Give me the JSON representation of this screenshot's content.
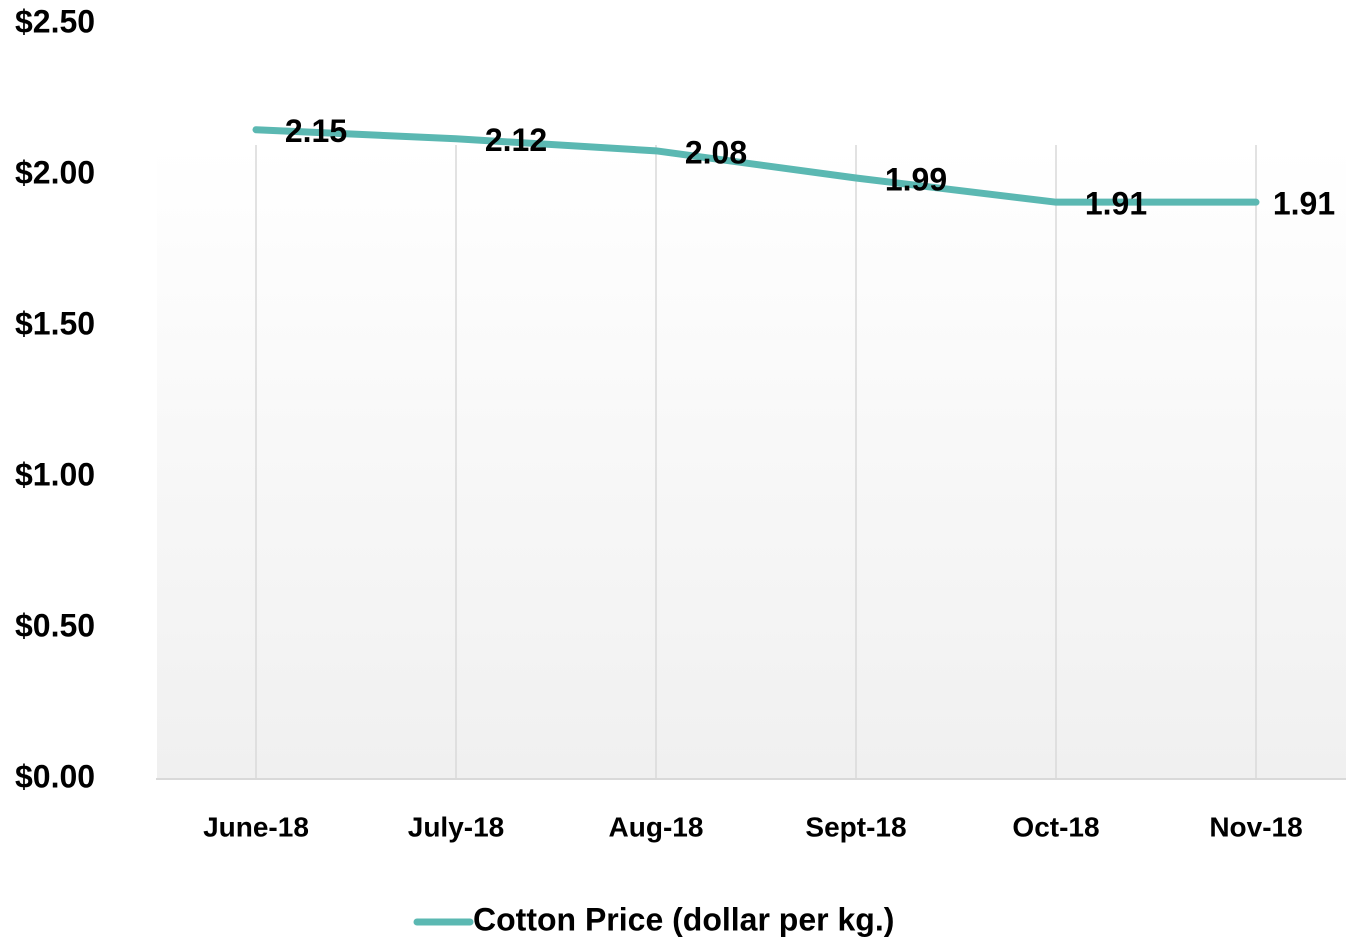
{
  "chart_data": {
    "type": "line",
    "categories": [
      "June-18",
      "July-18",
      "Aug-18",
      "Sept-18",
      "Oct-18",
      "Nov-18"
    ],
    "series": [
      {
        "name": "Cotton Price (dollar per kg.)",
        "color": "#5bb8b2",
        "values": [
          2.15,
          2.12,
          2.08,
          1.99,
          1.91,
          1.91
        ]
      }
    ],
    "ylim": [
      0,
      2.5
    ],
    "yticks": [
      {
        "value": 0,
        "label": "$0.00"
      },
      {
        "value": 0.5,
        "label": "$0.50"
      },
      {
        "value": 1,
        "label": "$1.00"
      },
      {
        "value": 1.5,
        "label": "$1.50"
      },
      {
        "value": 2,
        "label": "$2.00"
      },
      {
        "value": 2.5,
        "label": "$2.50"
      }
    ],
    "legend": "bottom"
  }
}
